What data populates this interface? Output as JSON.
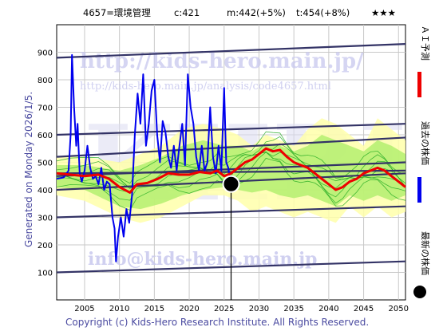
{
  "header": {
    "title": "4657=環境管理",
    "current": "c:421",
    "mid": "m:442(+5%)",
    "target": "t:454(+8%)",
    "stars": "★★★"
  },
  "side_labels": {
    "forecast": "ＡＩ予測",
    "past": "過去の株価",
    "latest": "最新の株価"
  },
  "generated_text": "Generated on Monday 2026/1/5.",
  "copyright": "Copyright (c) Kids-Hero Research Institute. All Rights Reserved.",
  "watermarks": {
    "url_large": "http://kids-hero.main.jp/",
    "url_small": "http://kids-hero.main.jp/analysis/code4657.html",
    "email": "info@kids-hero.main.jp",
    "logo": "KHRI"
  },
  "colors": {
    "past_price": "#0000ee",
    "forecast": "#ee0000",
    "band_outer": "#ffffaa",
    "band_inner": "#aaee66",
    "sim_lines": "#22aa22",
    "trend_lines": "#333366",
    "latest_marker": "#000000"
  },
  "chart_data": {
    "type": "line",
    "x_range": [
      2001,
      2051
    ],
    "y_range": [
      0,
      1000
    ],
    "x_ticks": [
      2005,
      2010,
      2015,
      2020,
      2025,
      2030,
      2035,
      2040,
      2045,
      2050
    ],
    "y_ticks": [
      100,
      200,
      300,
      400,
      500,
      600,
      700,
      800,
      900
    ],
    "grid": true,
    "latest": {
      "x": 2026.0,
      "y": 421
    },
    "past_price": [
      [
        2001.0,
        440
      ],
      [
        2002.0,
        445
      ],
      [
        2002.7,
        470
      ],
      [
        2003.0,
        600
      ],
      [
        2003.2,
        890
      ],
      [
        2003.5,
        700
      ],
      [
        2003.8,
        560
      ],
      [
        2004.0,
        640
      ],
      [
        2004.3,
        460
      ],
      [
        2004.6,
        430
      ],
      [
        2005.0,
        470
      ],
      [
        2005.4,
        560
      ],
      [
        2005.8,
        480
      ],
      [
        2006.2,
        440
      ],
      [
        2006.6,
        450
      ],
      [
        2007.0,
        420
      ],
      [
        2007.4,
        480
      ],
      [
        2007.8,
        400
      ],
      [
        2008.2,
        430
      ],
      [
        2008.6,
        420
      ],
      [
        2009.0,
        300
      ],
      [
        2009.3,
        260
      ],
      [
        2009.5,
        140
      ],
      [
        2009.8,
        230
      ],
      [
        2010.2,
        300
      ],
      [
        2010.6,
        230
      ],
      [
        2011.0,
        330
      ],
      [
        2011.4,
        280
      ],
      [
        2011.8,
        380
      ],
      [
        2012.2,
        600
      ],
      [
        2012.6,
        750
      ],
      [
        2013.0,
        640
      ],
      [
        2013.4,
        820
      ],
      [
        2013.8,
        560
      ],
      [
        2014.2,
        640
      ],
      [
        2014.6,
        760
      ],
      [
        2015.0,
        800
      ],
      [
        2015.4,
        600
      ],
      [
        2015.8,
        500
      ],
      [
        2016.2,
        650
      ],
      [
        2016.6,
        610
      ],
      [
        2017.0,
        520
      ],
      [
        2017.4,
        480
      ],
      [
        2017.8,
        560
      ],
      [
        2018.2,
        470
      ],
      [
        2018.6,
        560
      ],
      [
        2019.0,
        640
      ],
      [
        2019.4,
        490
      ],
      [
        2019.8,
        820
      ],
      [
        2020.2,
        700
      ],
      [
        2020.6,
        640
      ],
      [
        2021.0,
        520
      ],
      [
        2021.4,
        470
      ],
      [
        2021.8,
        560
      ],
      [
        2022.2,
        470
      ],
      [
        2022.6,
        500
      ],
      [
        2023.0,
        700
      ],
      [
        2023.4,
        520
      ],
      [
        2023.8,
        460
      ],
      [
        2024.2,
        560
      ],
      [
        2024.6,
        470
      ],
      [
        2025.0,
        770
      ],
      [
        2025.3,
        500
      ],
      [
        2025.6,
        480
      ],
      [
        2026.0,
        421
      ]
    ],
    "forecast": [
      [
        2001.0,
        460
      ],
      [
        2003.0,
        455
      ],
      [
        2005.0,
        450
      ],
      [
        2007.0,
        455
      ],
      [
        2008.5,
        440
      ],
      [
        2010.0,
        410
      ],
      [
        2011.5,
        390
      ],
      [
        2012.5,
        420
      ],
      [
        2014.0,
        425
      ],
      [
        2015.5,
        440
      ],
      [
        2017.0,
        460
      ],
      [
        2018.5,
        455
      ],
      [
        2020.0,
        455
      ],
      [
        2021.5,
        465
      ],
      [
        2023.0,
        460
      ],
      [
        2024.0,
        470
      ],
      [
        2025.0,
        450
      ],
      [
        2026.0,
        460
      ],
      [
        2027.0,
        480
      ],
      [
        2028.0,
        500
      ],
      [
        2029.0,
        510
      ],
      [
        2030.0,
        530
      ],
      [
        2031.0,
        550
      ],
      [
        2032.0,
        540
      ],
      [
        2033.0,
        545
      ],
      [
        2034.0,
        520
      ],
      [
        2035.0,
        500
      ],
      [
        2036.0,
        490
      ],
      [
        2037.0,
        480
      ],
      [
        2038.0,
        460
      ],
      [
        2039.0,
        440
      ],
      [
        2040.0,
        420
      ],
      [
        2041.0,
        400
      ],
      [
        2042.0,
        410
      ],
      [
        2043.0,
        430
      ],
      [
        2044.0,
        440
      ],
      [
        2045.0,
        460
      ],
      [
        2046.0,
        470
      ],
      [
        2047.0,
        480
      ],
      [
        2048.0,
        470
      ],
      [
        2049.0,
        450
      ],
      [
        2050.0,
        430
      ],
      [
        2051.0,
        410
      ]
    ],
    "band_outer_upper": [
      [
        2001.0,
        520
      ],
      [
        2005.0,
        520
      ],
      [
        2010.0,
        500
      ],
      [
        2013.0,
        530
      ],
      [
        2016.0,
        560
      ],
      [
        2019.0,
        620
      ],
      [
        2022.0,
        640
      ],
      [
        2025.0,
        620
      ],
      [
        2027.0,
        600
      ],
      [
        2029.0,
        560
      ],
      [
        2031.0,
        600
      ],
      [
        2033.0,
        580
      ],
      [
        2035.0,
        560
      ],
      [
        2037.0,
        620
      ],
      [
        2039.0,
        660
      ],
      [
        2041.0,
        640
      ],
      [
        2043.0,
        600
      ],
      [
        2045.0,
        560
      ],
      [
        2047.0,
        660
      ],
      [
        2049.0,
        620
      ],
      [
        2051.0,
        580
      ]
    ],
    "band_outer_lower": [
      [
        2051.0,
        320
      ],
      [
        2049.0,
        300
      ],
      [
        2047.0,
        340
      ],
      [
        2045.0,
        300
      ],
      [
        2043.0,
        340
      ],
      [
        2041.0,
        280
      ],
      [
        2039.0,
        300
      ],
      [
        2037.0,
        320
      ],
      [
        2035.0,
        300
      ],
      [
        2033.0,
        320
      ],
      [
        2031.0,
        340
      ],
      [
        2029.0,
        320
      ],
      [
        2027.0,
        360
      ],
      [
        2025.0,
        380
      ],
      [
        2022.0,
        380
      ],
      [
        2019.0,
        340
      ],
      [
        2016.0,
        300
      ],
      [
        2013.0,
        280
      ],
      [
        2010.0,
        300
      ],
      [
        2005.0,
        360
      ],
      [
        2001.0,
        380
      ]
    ],
    "band_inner_upper": [
      [
        2001.0,
        490
      ],
      [
        2005.0,
        490
      ],
      [
        2010.0,
        470
      ],
      [
        2013.0,
        490
      ],
      [
        2016.0,
        520
      ],
      [
        2019.0,
        560
      ],
      [
        2022.0,
        580
      ],
      [
        2025.0,
        560
      ],
      [
        2027.0,
        560
      ],
      [
        2029.0,
        540
      ],
      [
        2031.0,
        570
      ],
      [
        2033.0,
        560
      ],
      [
        2035.0,
        540
      ],
      [
        2037.0,
        560
      ],
      [
        2039.0,
        600
      ],
      [
        2041.0,
        580
      ],
      [
        2043.0,
        560
      ],
      [
        2045.0,
        540
      ],
      [
        2047.0,
        580
      ],
      [
        2049.0,
        560
      ],
      [
        2051.0,
        530
      ]
    ],
    "band_inner_lower": [
      [
        2051.0,
        380
      ],
      [
        2049.0,
        360
      ],
      [
        2047.0,
        380
      ],
      [
        2045.0,
        360
      ],
      [
        2043.0,
        380
      ],
      [
        2041.0,
        340
      ],
      [
        2039.0,
        360
      ],
      [
        2037.0,
        380
      ],
      [
        2035.0,
        370
      ],
      [
        2033.0,
        380
      ],
      [
        2031.0,
        400
      ],
      [
        2029.0,
        390
      ],
      [
        2027.0,
        400
      ],
      [
        2025.0,
        410
      ],
      [
        2022.0,
        400
      ],
      [
        2019.0,
        380
      ],
      [
        2016.0,
        350
      ],
      [
        2013.0,
        330
      ],
      [
        2010.0,
        340
      ],
      [
        2005.0,
        400
      ],
      [
        2001.0,
        410
      ]
    ],
    "trend_lines": [
      [
        [
          2001.0,
          880
        ],
        [
          2051.0,
          930
        ]
      ],
      [
        [
          2001.0,
          600
        ],
        [
          2051.0,
          640
        ]
      ],
      [
        [
          2001.0,
          520
        ],
        [
          2051.0,
          590
        ]
      ],
      [
        [
          2001.0,
          450
        ],
        [
          2051.0,
          500
        ]
      ],
      [
        [
          2001.0,
          460
        ],
        [
          2051.0,
          470
        ]
      ],
      [
        [
          2001.0,
          400
        ],
        [
          2051.0,
          460
        ]
      ],
      [
        [
          2001.0,
          300
        ],
        [
          2051.0,
          340
        ]
      ],
      [
        [
          2001.0,
          100
        ],
        [
          2051.0,
          140
        ]
      ]
    ]
  }
}
